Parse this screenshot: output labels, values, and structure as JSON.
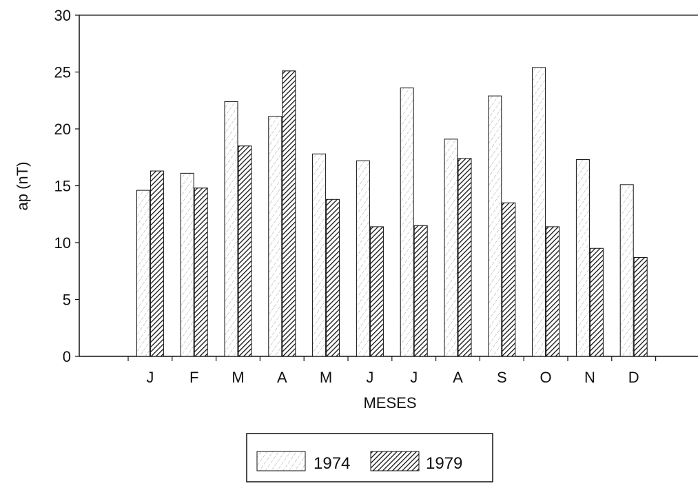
{
  "chart_data": {
    "type": "bar",
    "title": "",
    "xlabel": "MESES",
    "ylabel": "ap (nT)",
    "ylim": [
      0,
      30
    ],
    "yticks": [
      0,
      5,
      10,
      15,
      20,
      25,
      30
    ],
    "grid": false,
    "legend_position": "bottom-center",
    "categories": [
      "J",
      "F",
      "M",
      "A",
      "M",
      "J",
      "J",
      "A",
      "S",
      "O",
      "N",
      "D"
    ],
    "series": [
      {
        "name": "1974",
        "values": [
          14.6,
          16.1,
          22.4,
          21.1,
          17.8,
          17.2,
          23.6,
          19.1,
          22.9,
          25.4,
          17.3,
          15.1
        ],
        "pattern": "light-diagonal-hatch",
        "color": "#bbbbbb"
      },
      {
        "name": "1979",
        "values": [
          16.3,
          14.8,
          18.5,
          25.1,
          13.8,
          11.4,
          11.5,
          17.4,
          13.5,
          11.4,
          9.5,
          8.7
        ],
        "pattern": "dense-diagonal-hatch",
        "color": "#111111"
      }
    ]
  }
}
